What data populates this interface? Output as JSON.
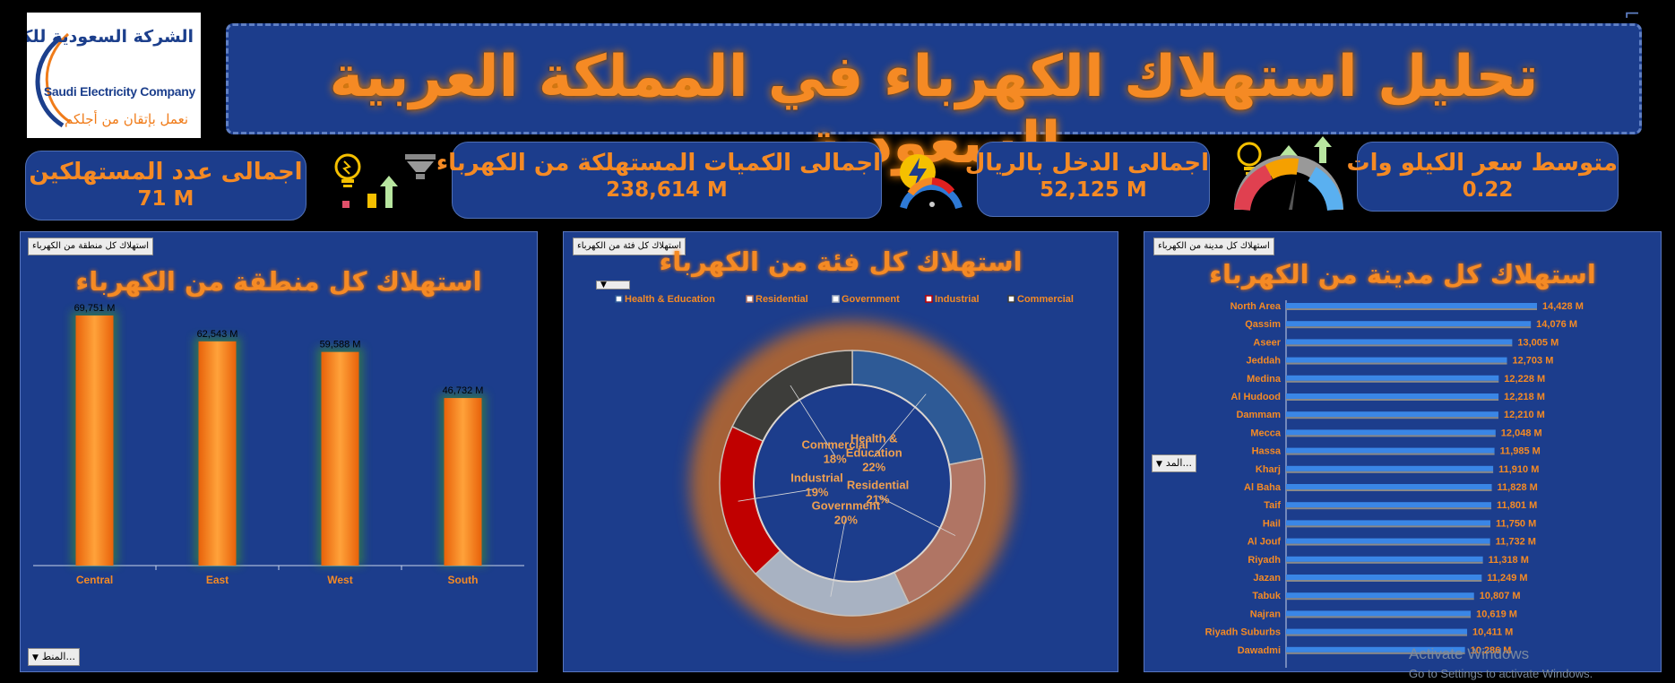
{
  "logo": {
    "arabic_name": "الشركة السعودية للكهرباء",
    "english_name": "Saudi Electricity Company",
    "tagline": "نعمل بإتقان من أجلكم"
  },
  "header": {
    "title": "تحليل استهلاك الكهرباء في المملكة العربية السعودية"
  },
  "kpis": [
    {
      "label": "اجمالى عدد المستهلكين",
      "value": "71 M"
    },
    {
      "label": "اجمالى الكميات المستهلكة من الكهرباء",
      "value": "238,614 M"
    },
    {
      "label": "اجمالى الدخل بالريال",
      "value": "52,125 M"
    },
    {
      "label": "متوسط سعر الكيلو وات",
      "value": "0.22"
    }
  ],
  "region_panel": {
    "tag": "استهلاك كل منطقة من الكهرباء",
    "title": "استهلاك كل منطقة من الكهرباء",
    "filter_label": "المنط...",
    "chart_data": {
      "type": "bar",
      "categories": [
        "Central",
        "East",
        "West",
        "South"
      ],
      "values": [
        69751,
        62543,
        59588,
        46732
      ],
      "data_labels": [
        "69,751 M",
        "62,543 M",
        "59,588 M",
        "46,732 M"
      ],
      "ylim": [
        0,
        75000
      ],
      "grid": false
    }
  },
  "category_panel": {
    "tag": "استهلاك كل فئة من الكهرباء",
    "title": "استهلاك كل فئة من الكهرباء",
    "legend": [
      "Health & Education",
      "Residential",
      "Government",
      "Industrial",
      "Commercial"
    ],
    "chart_data": {
      "type": "pie",
      "categories": [
        "Health & Education",
        "Residential",
        "Government",
        "Industrial",
        "Commercial"
      ],
      "values": [
        22,
        21,
        20,
        19,
        18
      ],
      "labels": [
        "22%",
        "21%",
        "20%",
        "19%",
        "18%"
      ],
      "colors": [
        "#2e5a96",
        "#b07564",
        "#a8b2c2",
        "#c00000",
        "#3d3d3a"
      ],
      "legend_position": "top"
    }
  },
  "city_panel": {
    "tag": "استهلاك كل مدينة من الكهرباء",
    "title": "استهلاك كل مدينة من الكهرباء",
    "filter_label": "المد...",
    "chart_data": {
      "type": "bar",
      "orientation": "horizontal",
      "categories": [
        "North Area",
        "Qassim",
        "Aseer",
        "Jeddah",
        "Medina",
        "Al Hudood",
        "Dammam",
        "Mecca",
        "Hassa",
        "Kharj",
        "Al Baha",
        "Taif",
        "Hail",
        "Al Jouf",
        "Riyadh",
        "Jazan",
        "Tabuk",
        "Najran",
        "Riyadh Suburbs",
        "Dawadmi"
      ],
      "values": [
        14428,
        14076,
        13005,
        12703,
        12228,
        12218,
        12210,
        12048,
        11985,
        11910,
        11828,
        11801,
        11750,
        11732,
        11318,
        11249,
        10807,
        10619,
        10411,
        10286
      ],
      "data_labels": [
        "14,428 M",
        "14,076 M",
        "13,005 M",
        "12,703 M",
        "12,228 M",
        "12,218 M",
        "12,210 M",
        "12,048 M",
        "11,985 M",
        "11,910 M",
        "11,828 M",
        "11,801 M",
        "11,750 M",
        "11,732 M",
        "11,318 M",
        "11,249 M",
        "10,807 M",
        "10,619 M",
        "10,411 M",
        "10,286 M"
      ],
      "xlim": [
        0,
        14428
      ],
      "grid": false
    }
  },
  "watermark": {
    "line1": "Activate Windows",
    "line2": "Go to Settings to activate Windows."
  },
  "icons": [
    "bulb-icon",
    "funnel-icon",
    "bolt-gauge-icon",
    "gauge-icon",
    "arrow-up-icon"
  ]
}
